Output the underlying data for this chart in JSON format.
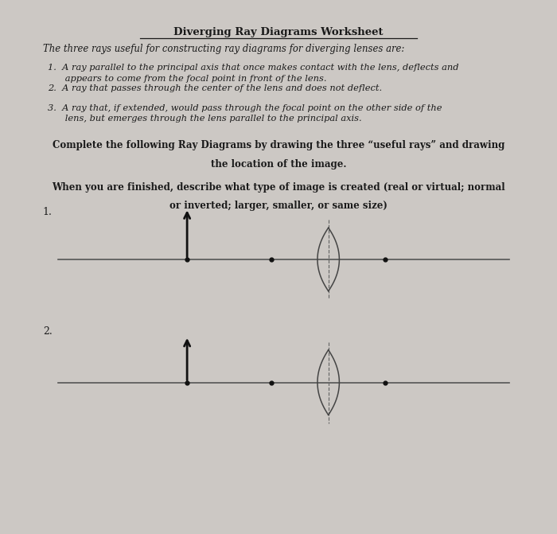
{
  "title": "Diverging Ray Diagrams Worksheet",
  "bg_color": "#ccc8c4",
  "paper_color": "#e6e2dd",
  "text_color": "#1a1a1a",
  "intro_line": "The three rays useful for constructing ray diagrams for diverging lenses are:",
  "item1": "1.  A ray parallel to the principal axis that once makes contact with the lens, deflects and\n      appears to come from the focal point in front of the lens.",
  "item2": "2.  A ray that passes through the center of the lens and does not deflect.",
  "item3": "3.  A ray that, if extended, would pass through the focal point on the other side of the\n      lens, but emerges through the lens parallel to the principal axis.",
  "bold_line1a": "Complete the following Ray Diagrams by drawing the three “useful rays” and drawing",
  "bold_line1b": "the location of the image.",
  "bold_line2a": "When you are finished, describe what type of image is created (real or virtual; normal",
  "bold_line2b": "or inverted; larger, smaller, or same size)",
  "diagram1_label": "1.",
  "diagram2_label": "2.",
  "axis_color": "#555555",
  "lens_color": "#444444",
  "arrow_color": "#111111",
  "dot_color": "#111111",
  "dashed_color": "#666666"
}
